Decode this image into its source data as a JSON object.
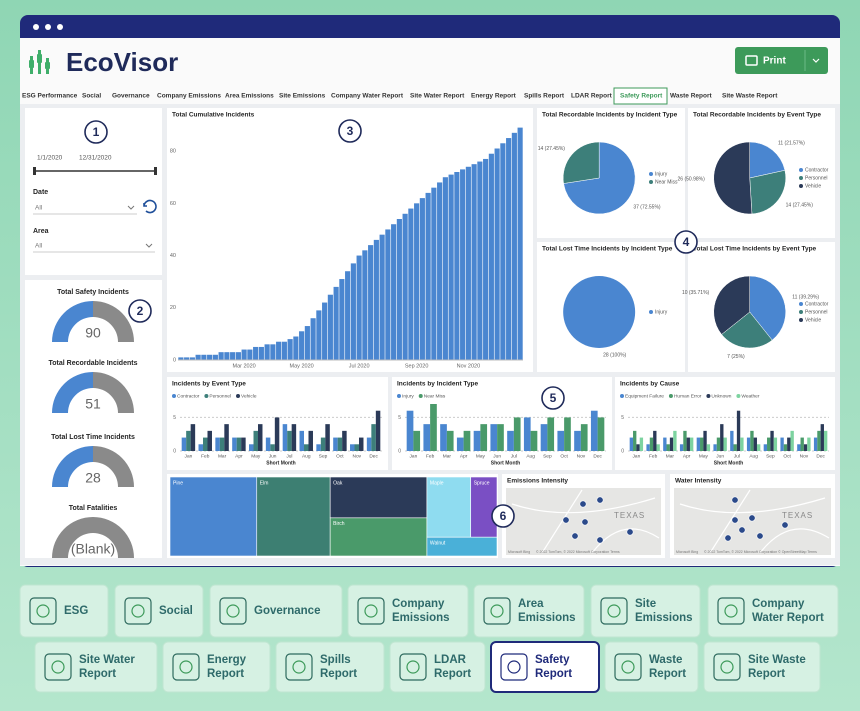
{
  "header": {
    "logo": "EcoVisor",
    "print": "Print"
  },
  "nav": [
    "ESG Performance",
    "Social",
    "Governance",
    "Company Emissions",
    "Area Emissions",
    "Site Emissions",
    "Company Water Report",
    "Site Water Report",
    "Energy Report",
    "Spills Report",
    "LDAR Report",
    "Safety Report",
    "Waste Report",
    "Site Waste Report"
  ],
  "markers": [
    1,
    2,
    3,
    4,
    5,
    6
  ],
  "filters": {
    "start": "1/1/2020",
    "end": "12/31/2020",
    "date_label": "Date",
    "date_value": "All",
    "area_label": "Area",
    "area_value": "All"
  },
  "kpis": [
    {
      "title": "Total Safety Incidents",
      "value": 90
    },
    {
      "title": "Total Recordable Incidents",
      "value": 51
    },
    {
      "title": "Total Lost Time Incidents",
      "value": 28
    },
    {
      "title": "Total Fatalities",
      "value": "(Blank)"
    }
  ],
  "chart_data": [
    {
      "type": "bar",
      "title": "Total Cumulative Incidents",
      "color": "#4a86d0",
      "values": [
        1,
        1,
        1,
        2,
        2,
        2,
        2,
        3,
        3,
        3,
        3,
        4,
        4,
        5,
        5,
        6,
        6,
        7,
        7,
        8,
        9,
        11,
        13,
        16,
        19,
        22,
        25,
        28,
        31,
        34,
        37,
        40,
        42,
        44,
        46,
        48,
        50,
        52,
        54,
        56,
        58,
        60,
        62,
        64,
        66,
        68,
        70,
        71,
        72,
        73,
        74,
        75,
        76,
        77,
        79,
        81,
        83,
        85,
        87,
        89
      ],
      "ylim": [
        0,
        90
      ],
      "yticks": [
        0,
        20,
        40,
        60,
        80
      ],
      "xticks": [
        {
          "value": 11,
          "label": "Mar 2020"
        },
        {
          "value": 21,
          "label": "May 2020"
        },
        {
          "value": 31,
          "label": "Jul 2020"
        },
        {
          "value": 41,
          "label": "Sep 2020"
        },
        {
          "value": 50,
          "label": "Nov 2020"
        }
      ]
    },
    {
      "type": "pie",
      "title": "Total Recordable Incidents by Incident Type",
      "categories": [
        "Injury",
        "Near Miss"
      ],
      "values": [
        37,
        14
      ],
      "value_labels": [
        "37 (72.55%)",
        "14 (27.45%)"
      ],
      "colors": [
        "#4a86d0",
        "#3d7f7a"
      ]
    },
    {
      "type": "pie",
      "title": "Total Recordable Incidents by Event Type",
      "categories": [
        "Contractor",
        "Personnel",
        "Vehicle"
      ],
      "values": [
        11,
        14,
        26
      ],
      "value_labels": [
        "11 (21.57%)",
        "14 (27.45%)",
        "26 (50.98%)"
      ],
      "colors": [
        "#4a86d0",
        "#3d7f7a",
        "#2b3a58"
      ]
    },
    {
      "type": "pie",
      "title": "Total Lost Time Incidents by Incident Type",
      "categories": [
        "Injury"
      ],
      "values": [
        28
      ],
      "value_labels": [
        "28 (100%)"
      ],
      "colors": [
        "#4a86d0"
      ]
    },
    {
      "type": "pie",
      "title": "Total Lost Time Incidents by Event Type",
      "categories": [
        "Contractor",
        "Personnel",
        "Vehicle"
      ],
      "values": [
        11,
        7,
        10
      ],
      "value_labels": [
        "11 (39.29%)",
        "7 (25%)",
        "10 (35.71%)"
      ],
      "colors": [
        "#4a86d0",
        "#3d7f7a",
        "#2b3a58"
      ]
    },
    {
      "type": "grouped_bar",
      "title": "Incidents by Event Type",
      "x_label": "Short Month",
      "categories": [
        "Jan",
        "Feb",
        "Mar",
        "Apr",
        "May",
        "Jun",
        "Jul",
        "Aug",
        "Sep",
        "Oct",
        "Nov",
        "Dec"
      ],
      "series": [
        {
          "name": "Contractor",
          "color": "#4a86d0",
          "values": [
            2,
            1,
            2,
            2,
            1,
            2,
            4,
            3,
            1,
            2,
            1,
            2
          ]
        },
        {
          "name": "Personnel",
          "color": "#3d7f7a",
          "values": [
            3,
            2,
            2,
            2,
            3,
            1,
            3,
            1,
            2,
            2,
            1,
            4
          ]
        },
        {
          "name": "Vehicle",
          "color": "#2b3a58",
          "values": [
            4,
            3,
            4,
            2,
            4,
            5,
            4,
            3,
            4,
            3,
            2,
            6
          ]
        }
      ],
      "ylim": [
        0,
        7
      ],
      "yticks": [
        0,
        5
      ]
    },
    {
      "type": "grouped_bar",
      "title": "Incidents by Incident Type",
      "x_label": "Short Month",
      "categories": [
        "Jan",
        "Feb",
        "Mar",
        "Apr",
        "May",
        "Jun",
        "Jul",
        "Aug",
        "Sep",
        "Oct",
        "Nov",
        "Dec"
      ],
      "series": [
        {
          "name": "Injury",
          "color": "#4a86d0",
          "values": [
            6,
            4,
            4,
            2,
            3,
            4,
            3,
            5,
            4,
            3,
            3,
            6
          ]
        },
        {
          "name": "Near Miss",
          "color": "#4a9a6a",
          "values": [
            3,
            7,
            3,
            3,
            4,
            4,
            5,
            3,
            5,
            5,
            4,
            5
          ]
        }
      ],
      "ylim": [
        0,
        7
      ],
      "yticks": [
        0,
        5
      ]
    },
    {
      "type": "grouped_bar",
      "title": "Incidents by Cause",
      "x_label": "Short Month",
      "categories": [
        "Jan",
        "Feb",
        "Mar",
        "Apr",
        "May",
        "Jun",
        "Jul",
        "Aug",
        "Sep",
        "Oct",
        "Nov",
        "Dec"
      ],
      "series": [
        {
          "name": "Equipment Failure",
          "color": "#4a86d0",
          "values": [
            2,
            1,
            2,
            1,
            2,
            1,
            3,
            2,
            1,
            2,
            1,
            2
          ]
        },
        {
          "name": "Human Error",
          "color": "#4a9a6a",
          "values": [
            3,
            2,
            1,
            3,
            2,
            2,
            1,
            3,
            2,
            1,
            2,
            3
          ]
        },
        {
          "name": "Unknown",
          "color": "#2b3a58",
          "values": [
            1,
            3,
            2,
            2,
            3,
            4,
            6,
            2,
            3,
            2,
            1,
            4
          ]
        },
        {
          "name": "Weather",
          "color": "#7dd3a0",
          "values": [
            2,
            1,
            3,
            2,
            1,
            2,
            2,
            1,
            2,
            3,
            2,
            3
          ]
        }
      ],
      "ylim": [
        0,
        7
      ],
      "yticks": [
        0,
        5
      ]
    },
    {
      "type": "treemap",
      "categories": [
        "Pine",
        "Elm",
        "Oak",
        "Birch",
        "Maple",
        "Spruce",
        "Walnut"
      ],
      "values": [
        26,
        22,
        15,
        14,
        10,
        6,
        5
      ],
      "colors": [
        "#4a86d0",
        "#3d7f72",
        "#2b3a58",
        "#4a9a6a",
        "#8fdcf0",
        "#7a4fc4",
        "#4ab0d8"
      ]
    }
  ],
  "maps": [
    {
      "title": "Emissions Intensity",
      "label": "TEXAS",
      "brand": "Microsoft Bing",
      "credit": "© 2022 TomTom, © 2022 Microsoft Corporation  Terms"
    },
    {
      "title": "Water Intensity",
      "label": "TEXAS",
      "brand": "Microsoft Bing",
      "credit": "© 2022 TomTom, © 2022 Microsoft Corporation  © OpenStreetMap  Terms"
    }
  ],
  "tiles": [
    [
      "ESG"
    ],
    [
      "Social"
    ],
    [
      "Governance"
    ],
    [
      "Company",
      "Emissions"
    ],
    [
      "Area",
      "Emissions"
    ],
    [
      "Site",
      "Emissions"
    ],
    [
      "Company",
      "Water Report"
    ],
    [
      "Site Water",
      "Report"
    ],
    [
      "Energy",
      "Report"
    ],
    [
      "Spills",
      "Report"
    ],
    [
      "LDAR",
      "Report"
    ],
    [
      "Safety",
      "Report"
    ],
    [
      "Waste",
      "Report"
    ],
    [
      "Site Waste",
      "Report"
    ]
  ]
}
